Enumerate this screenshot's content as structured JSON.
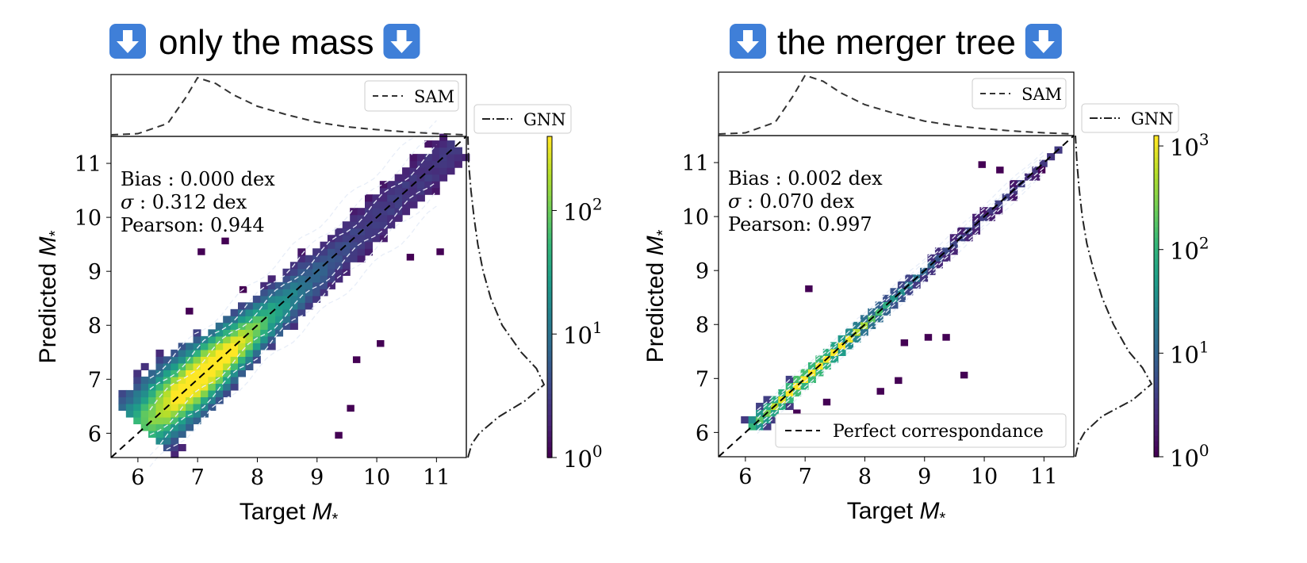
{
  "panels": [
    {
      "heading": "only the mass",
      "chart_data": {
        "type": "heatmap",
        "xlabel_text": "Target",
        "ylabel_text": "Predicted",
        "axis_symbol": "M",
        "axis_symbol_sub": "*",
        "xlim": [
          5.55,
          11.5
        ],
        "ylim": [
          5.55,
          11.5
        ],
        "xticks": [
          6,
          7,
          8,
          9,
          10,
          11
        ],
        "yticks": [
          6,
          7,
          8,
          9,
          10,
          11
        ],
        "stats": [
          {
            "label": "Bias : 0.000 dex"
          },
          {
            "symbol": "σ",
            "label": " : 0.312 dex"
          },
          {
            "label": "Pearson:  0.944"
          }
        ],
        "legend_top": "SAM",
        "legend_right": "GNN",
        "legend_bottom": "",
        "colorbar": {
          "scale": "log",
          "min_exp": 0,
          "max_exp": 2.6,
          "tick_exps": [
            0,
            1,
            2
          ],
          "tick_base": "10"
        },
        "scatter_width": 0.3,
        "peak": [
          7.1,
          7.0
        ],
        "outliers": [
          [
            7.0,
            9.3
          ],
          [
            7.4,
            9.5
          ],
          [
            9.3,
            5.9
          ],
          [
            9.5,
            6.4
          ],
          [
            10.5,
            9.2
          ],
          [
            11.0,
            9.3
          ],
          [
            6.8,
            8.2
          ],
          [
            7.7,
            8.6
          ],
          [
            10.0,
            7.6
          ],
          [
            9.6,
            7.3
          ]
        ],
        "marginal_top": [
          [
            5.55,
            0.0
          ],
          [
            6.0,
            0.02
          ],
          [
            6.5,
            0.2
          ],
          [
            6.8,
            0.65
          ],
          [
            7.0,
            1.0
          ],
          [
            7.3,
            0.9
          ],
          [
            7.6,
            0.7
          ],
          [
            8.0,
            0.5
          ],
          [
            8.5,
            0.35
          ],
          [
            9.0,
            0.22
          ],
          [
            9.5,
            0.14
          ],
          [
            10.0,
            0.09
          ],
          [
            10.5,
            0.05
          ],
          [
            11.0,
            0.02
          ],
          [
            11.5,
            0.0
          ]
        ],
        "marginal_right": [
          [
            5.55,
            0.0
          ],
          [
            5.8,
            0.05
          ],
          [
            6.0,
            0.15
          ],
          [
            6.3,
            0.4
          ],
          [
            6.6,
            0.75
          ],
          [
            6.9,
            1.0
          ],
          [
            7.2,
            0.9
          ],
          [
            7.5,
            0.7
          ],
          [
            8.0,
            0.45
          ],
          [
            8.5,
            0.3
          ],
          [
            9.0,
            0.2
          ],
          [
            9.5,
            0.13
          ],
          [
            10.0,
            0.08
          ],
          [
            10.5,
            0.04
          ],
          [
            11.0,
            0.01
          ],
          [
            11.5,
            0.0
          ]
        ]
      }
    },
    {
      "heading": "the merger tree",
      "chart_data": {
        "type": "heatmap",
        "xlabel_text": "Target",
        "ylabel_text": "Predicted",
        "axis_symbol": "M",
        "axis_symbol_sub": "*",
        "xlim": [
          5.55,
          11.5
        ],
        "ylim": [
          5.55,
          11.5
        ],
        "xticks": [
          6,
          7,
          8,
          9,
          10,
          11
        ],
        "yticks": [
          6,
          7,
          8,
          9,
          10,
          11
        ],
        "stats": [
          {
            "label": "Bias : 0.002 dex"
          },
          {
            "symbol": "σ",
            "label": " : 0.070 dex"
          },
          {
            "label": "Pearson:  0.997"
          }
        ],
        "legend_top": "SAM",
        "legend_right": "GNN",
        "legend_bottom": "Perfect correspondance",
        "colorbar": {
          "scale": "log",
          "min_exp": 0,
          "max_exp": 3.1,
          "tick_exps": [
            0,
            1,
            2,
            3
          ],
          "tick_base": "10"
        },
        "scatter_width": 0.08,
        "peak": [
          7.2,
          7.2
        ],
        "outliers": [
          [
            7.0,
            8.6
          ],
          [
            9.3,
            7.7
          ],
          [
            9.0,
            7.7
          ],
          [
            9.6,
            7.0
          ],
          [
            8.6,
            7.6
          ],
          [
            8.5,
            6.9
          ],
          [
            9.9,
            10.9
          ],
          [
            10.2,
            10.8
          ],
          [
            10.9,
            10.8
          ],
          [
            8.2,
            6.7
          ],
          [
            6.8,
            6.3
          ],
          [
            7.3,
            6.5
          ]
        ],
        "marginal_top": [
          [
            5.55,
            0.0
          ],
          [
            6.0,
            0.02
          ],
          [
            6.5,
            0.2
          ],
          [
            6.8,
            0.65
          ],
          [
            7.0,
            1.0
          ],
          [
            7.3,
            0.9
          ],
          [
            7.6,
            0.7
          ],
          [
            8.0,
            0.5
          ],
          [
            8.5,
            0.35
          ],
          [
            9.0,
            0.22
          ],
          [
            9.5,
            0.14
          ],
          [
            10.0,
            0.09
          ],
          [
            10.5,
            0.05
          ],
          [
            11.0,
            0.02
          ],
          [
            11.5,
            0.0
          ]
        ],
        "marginal_right": [
          [
            5.55,
            0.0
          ],
          [
            5.8,
            0.04
          ],
          [
            6.0,
            0.12
          ],
          [
            6.3,
            0.35
          ],
          [
            6.6,
            0.75
          ],
          [
            6.9,
            1.0
          ],
          [
            7.2,
            0.88
          ],
          [
            7.5,
            0.7
          ],
          [
            8.0,
            0.5
          ],
          [
            8.5,
            0.35
          ],
          [
            9.0,
            0.24
          ],
          [
            9.5,
            0.15
          ],
          [
            10.0,
            0.09
          ],
          [
            10.5,
            0.05
          ],
          [
            11.0,
            0.02
          ],
          [
            11.5,
            0.0
          ]
        ]
      }
    }
  ],
  "colors": {
    "icon_bg": "#3f7fd8",
    "icon_fg": "#ffffff",
    "contour": "#e8eef8",
    "dashed_line": "#000000",
    "viridis": [
      "#440154",
      "#482878",
      "#3e4989",
      "#31688e",
      "#26828e",
      "#1f9e89",
      "#35b779",
      "#6ece58",
      "#b5de2b",
      "#fde725"
    ]
  },
  "icons": {
    "heading_icon": "down-arrow-icon"
  }
}
